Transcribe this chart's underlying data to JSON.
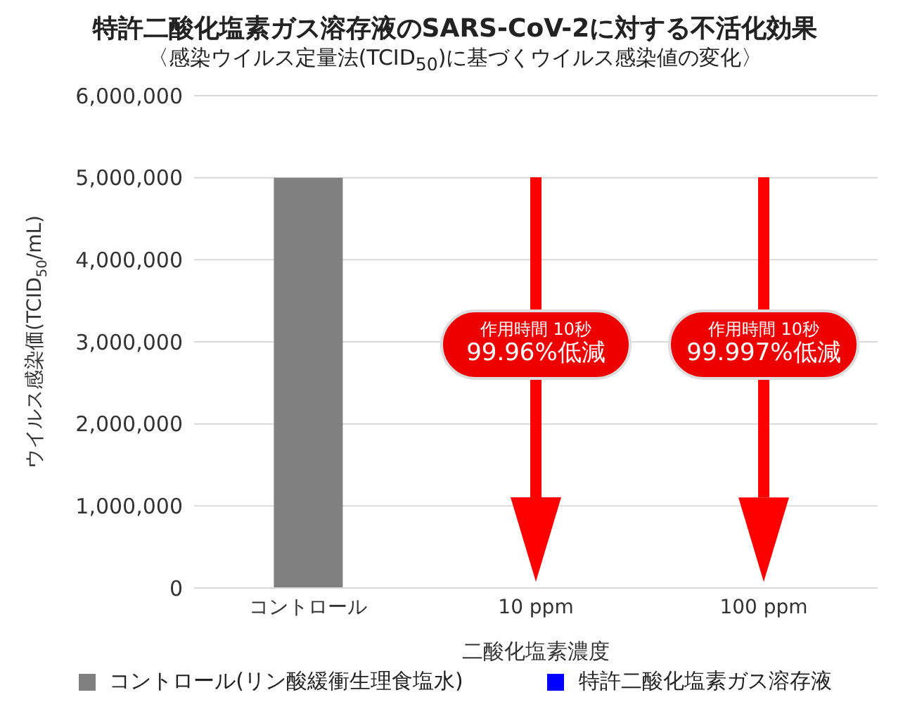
{
  "chart_data": {
    "type": "bar",
    "title": "特許二酸化塩素ガス溶存液のSARS-CoV-2に対する不活化効果",
    "subtitle": "〈感染ウイルス定量法(TCID$_{50}$)に基づくウイルス感染値の変化〉",
    "xlabel": "二酸化塩素濃度",
    "ylabel": "ウイルス感染価(TCID$_{50}$/mL)",
    "categories": [
      "コントロール",
      "10 ppm",
      "100 ppm"
    ],
    "series": [
      {
        "name": "コントロール(リン酸緩衝生理食塩水)",
        "color": "#808080",
        "values": [
          5000000,
          null,
          null
        ]
      },
      {
        "name": "特許二酸化塩素ガス溶存液",
        "color": "#0000ff",
        "values": [
          null,
          2000,
          150
        ]
      }
    ],
    "stacked": true,
    "ylim": [
      0,
      6000000
    ],
    "yticks": [
      0,
      {
        "value": 1000000,
        "label": "1,000,000"
      },
      {
        "value": 2000000,
        "label": "2,000,000"
      },
      {
        "value": 3000000,
        "label": "3,000,000"
      },
      {
        "value": 4000000,
        "label": "4,000,000"
      },
      {
        "value": 5000000,
        "label": "5,000,000"
      },
      {
        "value": 6000000,
        "label": "6,000,000"
      }
    ],
    "grid": "y",
    "legend": "bottom",
    "annotations": [
      "作用時間 10秒\n99.96%低減",
      "作用時間 10秒\n99.997%低減"
    ]
  }
}
